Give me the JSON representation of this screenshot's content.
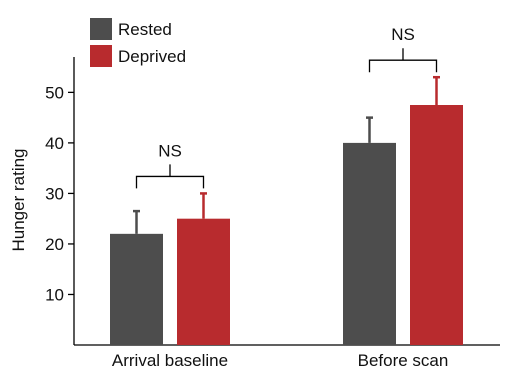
{
  "chart_data": {
    "type": "bar",
    "title": "",
    "xlabel": "",
    "ylabel": "Hunger rating",
    "categories": [
      "Arrival baseline",
      "Before scan"
    ],
    "series": [
      {
        "name": "Rested",
        "color": "#4d4d4d",
        "values": [
          22,
          40
        ],
        "errors": [
          4.5,
          5
        ]
      },
      {
        "name": "Deprived",
        "color": "#b82b2e",
        "values": [
          25,
          47.5
        ],
        "errors": [
          5,
          5.5
        ]
      }
    ],
    "yticks": [
      10,
      20,
      30,
      40,
      50
    ],
    "ylim": [
      0,
      57
    ],
    "grid": false,
    "legend": "top-left",
    "annotations": [
      {
        "category": "Arrival baseline",
        "text": "NS"
      },
      {
        "category": "Before scan",
        "text": "NS"
      }
    ]
  }
}
